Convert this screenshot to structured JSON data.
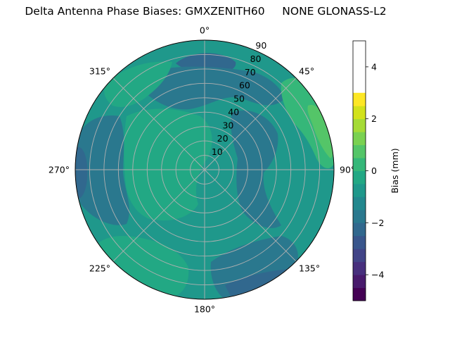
{
  "title": "Delta Antenna Phase Biases: GMXZENITH60     NONE GLONASS-L2",
  "chart_data": {
    "type": "polar-contour",
    "title": "Delta Antenna Phase Biases: GMXZENITH60     NONE GLONASS-L2",
    "azimuth_ticks": [
      "0°",
      "45°",
      "90°",
      "135°",
      "180°",
      "225°",
      "270°",
      "315°"
    ],
    "azimuth_degrees": [
      0,
      45,
      90,
      135,
      180,
      225,
      270,
      315
    ],
    "radial_ticks": [
      10,
      20,
      30,
      40,
      50,
      60,
      70,
      80,
      90
    ],
    "radial_label_angle_deg": 22.5,
    "radial_range": [
      0,
      90
    ],
    "grid": true,
    "colorbar": {
      "label": "Bias (mm)",
      "min": -5,
      "max": 5,
      "ticks": [
        4,
        2,
        0,
        -2,
        -4
      ],
      "tick_labels": [
        "4",
        "2",
        "0",
        "−2",
        "−4"
      ],
      "levels": [
        -5,
        -4.5,
        -4,
        -3.5,
        -3,
        -2.5,
        -2,
        -1.5,
        -1,
        -0.5,
        0,
        0.5,
        1,
        1.5,
        2,
        2.5,
        3,
        3.5,
        4,
        4.5,
        5
      ],
      "colors": [
        "#440154",
        "#481a6c",
        "#472f7d",
        "#414487",
        "#39568c",
        "#31688e",
        "#2a788e",
        "#23888e",
        "#1f988b",
        "#22a884",
        "#35b779",
        "#54c568",
        "#7ad151",
        "#a5db36",
        "#d2e21b",
        "#fde725"
      ]
    },
    "regions": [
      {
        "name": "base",
        "bias_mm": 0.2,
        "color": "#1f988b"
      },
      {
        "name": "north-top-patch",
        "bias_mm": -1.3,
        "color": "#31688e"
      },
      {
        "name": "north-center-band",
        "bias_mm": -0.7,
        "color": "#2a788e"
      },
      {
        "name": "west-band",
        "bias_mm": -0.8,
        "color": "#2a788e"
      },
      {
        "name": "west-edge",
        "bias_mm": -1.3,
        "color": "#31688e"
      },
      {
        "name": "east-band",
        "bias_mm": -0.6,
        "color": "#2a788e"
      },
      {
        "name": "southeast-band",
        "bias_mm": -0.8,
        "color": "#2a788e"
      },
      {
        "name": "southeast-edge",
        "bias_mm": -1.3,
        "color": "#31688e"
      },
      {
        "name": "northeast-high",
        "bias_mm": 1.3,
        "color": "#35b779"
      },
      {
        "name": "northeast-peak",
        "bias_mm": 2.3,
        "color": "#54c568"
      },
      {
        "name": "northwest-high",
        "bias_mm": 0.8,
        "color": "#22a884"
      },
      {
        "name": "southwest-high",
        "bias_mm": 0.8,
        "color": "#22a884"
      },
      {
        "name": "center-high",
        "bias_mm": 0.6,
        "color": "#22a884"
      }
    ]
  }
}
